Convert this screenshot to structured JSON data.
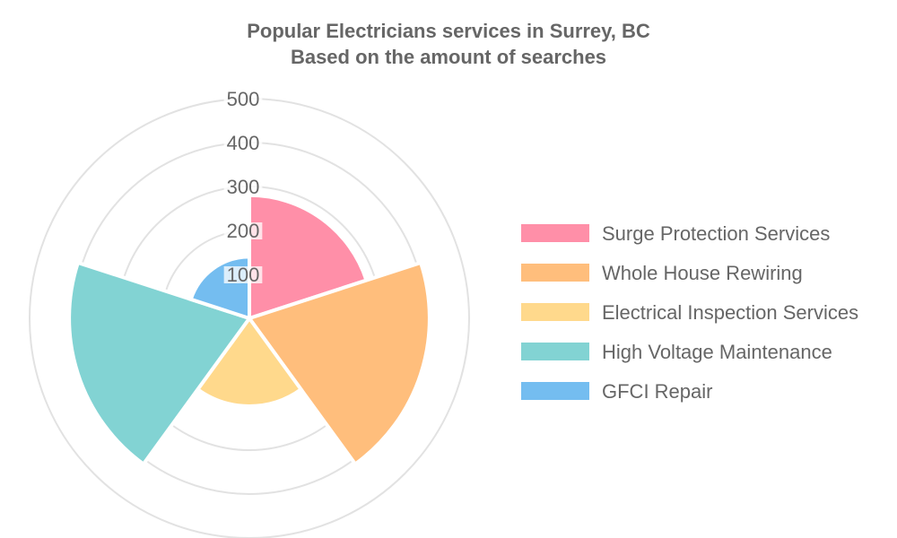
{
  "chart_data": {
    "type": "polar-area",
    "title": [
      "Popular Electricians services in Surrey, BC",
      "Based on the amount of searches"
    ],
    "categories": [
      "Surge Protection Services",
      "Whole House Rewiring",
      "Electrical Inspection Services",
      "High Voltage Maintenance",
      "GFCI Repair"
    ],
    "values": [
      280,
      410,
      200,
      410,
      140
    ],
    "colors": [
      "#ff8fa8",
      "#ffbe7c",
      "#ffd98c",
      "#82d3d3",
      "#74bdf0"
    ],
    "radial_ticks": [
      100,
      200,
      300,
      400,
      500
    ],
    "radial_max": 500,
    "grid": true,
    "legend_position": "right"
  }
}
